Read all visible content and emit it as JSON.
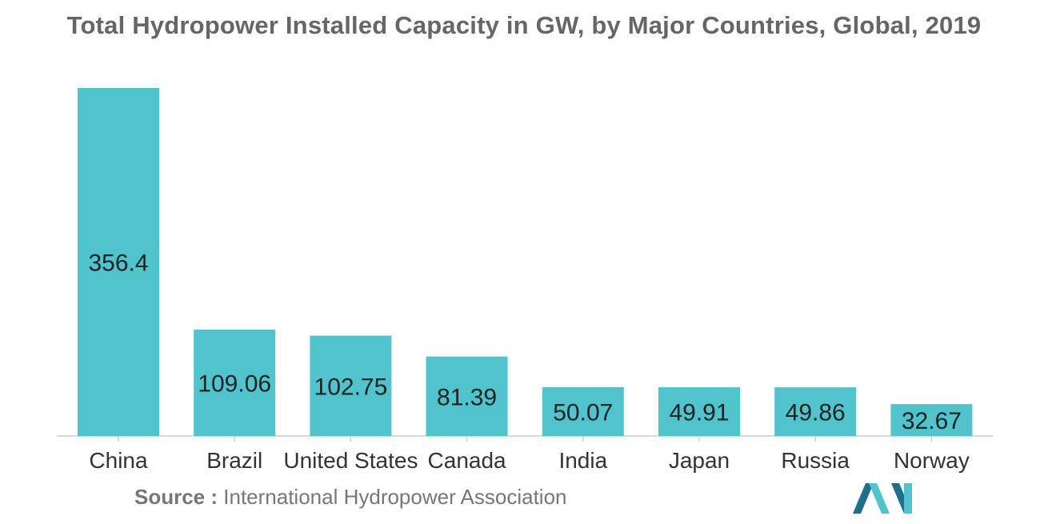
{
  "chart_data": {
    "type": "bar",
    "title": "Total Hydropower Installed Capacity in GW, by Major Countries, Global, 2019",
    "categories": [
      "China",
      "Brazil",
      "United States",
      "Canada",
      "India",
      "Japan",
      "Russia",
      "Norway"
    ],
    "values": [
      356.4,
      109.06,
      102.75,
      81.39,
      50.07,
      49.91,
      49.86,
      32.67
    ],
    "value_labels": [
      "356.4",
      "109.06",
      "102.75",
      "81.39",
      "50.07",
      "49.91",
      "49.86",
      "32.67"
    ],
    "xlabel": "",
    "ylabel": "",
    "ylim": [
      0,
      356.4
    ],
    "grid": false,
    "legend": "none",
    "units": "GW"
  },
  "source": {
    "label": "Source :",
    "text": " International Hydropower Association"
  },
  "colors": {
    "bar": "#4fc4cc",
    "label": "#222222",
    "axis": "#cccccc",
    "title": "#666666",
    "logo_dark": "#1f6f8b",
    "logo_light": "#4fc4cc"
  },
  "icons": {
    "logo": "brand-logo-icon"
  }
}
